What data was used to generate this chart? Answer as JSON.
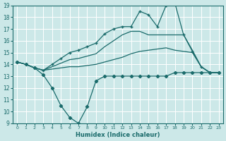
{
  "xlabel": "Humidex (Indice chaleur)",
  "xlim": [
    0,
    23
  ],
  "ylim": [
    9,
    19
  ],
  "yticks": [
    9,
    10,
    11,
    12,
    13,
    14,
    15,
    16,
    17,
    18,
    19
  ],
  "xticks": [
    0,
    1,
    2,
    3,
    4,
    5,
    6,
    7,
    8,
    9,
    10,
    11,
    12,
    13,
    14,
    15,
    16,
    17,
    18,
    19,
    20,
    21,
    22,
    23
  ],
  "bg_color": "#cce8e8",
  "line_color": "#1a6b6b",
  "grid_color": "#b0d8d8",
  "line1_x": [
    0,
    1,
    2,
    3,
    4,
    5,
    6,
    7,
    8,
    9,
    10,
    11,
    12,
    13,
    14,
    15,
    16,
    17,
    18,
    19,
    20,
    21,
    22,
    23
  ],
  "line1_y": [
    14.2,
    14.0,
    13.7,
    13.1,
    12.0,
    10.5,
    9.5,
    9.0,
    10.4,
    12.6,
    13.0,
    13.0,
    13.0,
    13.0,
    13.0,
    13.0,
    13.0,
    13.0,
    13.3,
    13.3,
    13.3,
    13.3,
    13.3,
    13.3
  ],
  "line2_x": [
    0,
    1,
    2,
    3,
    4,
    5,
    6,
    7,
    8,
    9,
    10,
    11,
    12,
    13,
    14,
    15,
    16,
    17,
    18,
    19,
    20,
    21,
    22,
    23
  ],
  "line2_y": [
    14.2,
    14.0,
    13.7,
    13.5,
    13.6,
    13.7,
    13.8,
    13.8,
    13.9,
    14.0,
    14.2,
    14.4,
    14.6,
    14.9,
    15.1,
    15.2,
    15.3,
    15.4,
    15.2,
    15.1,
    15.0,
    13.8,
    13.3,
    13.3
  ],
  "line3_x": [
    0,
    1,
    2,
    3,
    4,
    5,
    6,
    7,
    8,
    9,
    10,
    11,
    12,
    13,
    14,
    15,
    16,
    17,
    18,
    19,
    20,
    21,
    22,
    23
  ],
  "line3_y": [
    14.2,
    14.0,
    13.7,
    13.5,
    13.8,
    14.1,
    14.4,
    14.5,
    14.7,
    14.9,
    15.5,
    16.0,
    16.5,
    16.8,
    16.8,
    16.5,
    16.5,
    16.5,
    16.5,
    16.5,
    15.2,
    13.8,
    13.3,
    13.3
  ],
  "line4_x": [
    0,
    1,
    2,
    3,
    4,
    5,
    6,
    7,
    8,
    9,
    10,
    11,
    12,
    13,
    14,
    15,
    16,
    17,
    18,
    19,
    20,
    21,
    22,
    23
  ],
  "line4_y": [
    14.2,
    14.0,
    13.7,
    13.5,
    14.0,
    14.5,
    15.0,
    15.2,
    15.5,
    15.8,
    16.6,
    17.0,
    17.2,
    17.2,
    18.5,
    18.2,
    17.2,
    19.0,
    19.2,
    16.5,
    15.1,
    13.8,
    13.3,
    13.3
  ]
}
